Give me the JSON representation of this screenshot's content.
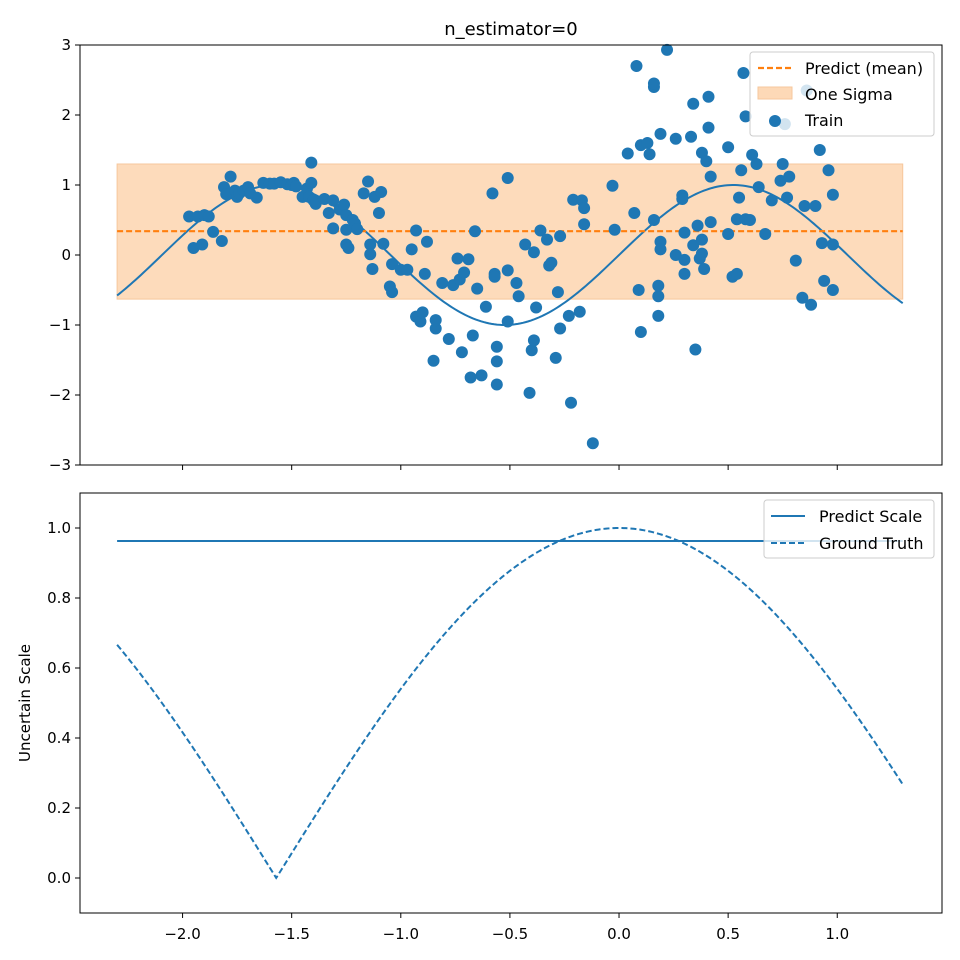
{
  "colors": {
    "blue": "#1f77b4",
    "orange": "#ff7f0e",
    "band_fill": "#fdd9b7"
  },
  "chart_data": [
    {
      "id": "top",
      "type": "scatter",
      "title": "n_estimator=0",
      "xlabel": "",
      "ylabel": "",
      "xlim": [
        -2.47,
        1.48
      ],
      "ylim": [
        -3,
        3
      ],
      "yticks": [
        -3,
        -2,
        -1,
        0,
        1,
        2,
        3
      ],
      "yticklabels": [
        "−3",
        "−2",
        "−1",
        "0",
        "1",
        "2",
        "3"
      ],
      "xticks": [
        -2.0,
        -1.5,
        -1.0,
        -0.5,
        0.0,
        0.5,
        1.0
      ],
      "show_xticklabels": false,
      "legend_placement": "top-right",
      "legend": [
        "Predict (mean)",
        "One Sigma",
        "Train"
      ],
      "predict_mean": {
        "name": "Predict (mean)",
        "x": [
          -2.3,
          1.3
        ],
        "y": 0.34
      },
      "one_sigma": {
        "name": "One Sigma",
        "x": [
          -2.3,
          1.3
        ],
        "lower": -0.63,
        "upper": 1.3
      },
      "true_function": {
        "description": "sin(3x)",
        "x_range": [
          -2.3,
          1.3
        ]
      },
      "train": {
        "name": "Train",
        "points": [
          [
            -1.97,
            0.55
          ],
          [
            -1.95,
            0.1
          ],
          [
            -1.93,
            0.55
          ],
          [
            -1.91,
            0.15
          ],
          [
            -1.9,
            0.57
          ],
          [
            -1.88,
            0.55
          ],
          [
            -1.86,
            0.33
          ],
          [
            -1.82,
            0.2
          ],
          [
            -1.81,
            0.97
          ],
          [
            -1.8,
            0.87
          ],
          [
            -1.78,
            1.12
          ],
          [
            -1.76,
            0.92
          ],
          [
            -1.75,
            0.83
          ],
          [
            -1.74,
            0.88
          ],
          [
            -1.72,
            0.92
          ],
          [
            -1.7,
            0.97
          ],
          [
            -1.69,
            0.88
          ],
          [
            -1.66,
            0.82
          ],
          [
            -1.63,
            1.03
          ],
          [
            -1.6,
            1.02
          ],
          [
            -1.58,
            1.02
          ],
          [
            -1.55,
            1.04
          ],
          [
            -1.52,
            1.01
          ],
          [
            -1.5,
            1.0
          ],
          [
            -1.49,
            1.03
          ],
          [
            -1.48,
            0.98
          ],
          [
            -1.45,
            0.83
          ],
          [
            -1.43,
            0.95
          ],
          [
            -1.42,
            0.83
          ],
          [
            -1.41,
            1.03
          ],
          [
            -1.41,
            1.32
          ],
          [
            -1.4,
            0.78
          ],
          [
            -1.39,
            0.73
          ],
          [
            -1.35,
            0.8
          ],
          [
            -1.33,
            0.6
          ],
          [
            -1.31,
            0.78
          ],
          [
            -1.31,
            0.38
          ],
          [
            -1.28,
            0.65
          ],
          [
            -1.26,
            0.72
          ],
          [
            -1.25,
            0.57
          ],
          [
            -1.25,
            0.36
          ],
          [
            -1.25,
            0.15
          ],
          [
            -1.24,
            0.1
          ],
          [
            -1.22,
            0.5
          ],
          [
            -1.21,
            0.45
          ],
          [
            -1.2,
            0.37
          ],
          [
            -1.17,
            0.88
          ],
          [
            -1.15,
            1.05
          ],
          [
            -1.14,
            0.15
          ],
          [
            -1.14,
            0.01
          ],
          [
            -1.13,
            -0.2
          ],
          [
            -1.12,
            0.83
          ],
          [
            -1.1,
            0.6
          ],
          [
            -1.09,
            0.9
          ],
          [
            -1.08,
            0.16
          ],
          [
            -1.05,
            -0.45
          ],
          [
            -1.04,
            -0.53
          ],
          [
            -1.04,
            -0.13
          ],
          [
            -1.0,
            -0.21
          ],
          [
            -0.97,
            -0.21
          ],
          [
            -0.95,
            0.08
          ],
          [
            -0.93,
            0.35
          ],
          [
            -0.93,
            -0.88
          ],
          [
            -0.91,
            -0.95
          ],
          [
            -0.9,
            -0.82
          ],
          [
            -0.89,
            -0.27
          ],
          [
            -0.88,
            0.19
          ],
          [
            -0.85,
            -1.51
          ],
          [
            -0.84,
            -1.05
          ],
          [
            -0.84,
            -0.93
          ],
          [
            -0.81,
            -0.4
          ],
          [
            -0.78,
            -1.2
          ],
          [
            -0.76,
            -0.43
          ],
          [
            -0.74,
            -0.05
          ],
          [
            -0.73,
            -0.35
          ],
          [
            -0.72,
            -1.39
          ],
          [
            -0.71,
            -0.25
          ],
          [
            -0.69,
            -0.06
          ],
          [
            -0.68,
            -1.75
          ],
          [
            -0.67,
            -1.15
          ],
          [
            -0.66,
            0.34
          ],
          [
            -0.65,
            -0.48
          ],
          [
            -0.63,
            -1.72
          ],
          [
            -0.61,
            -0.74
          ],
          [
            -0.58,
            0.88
          ],
          [
            -0.57,
            -0.27
          ],
          [
            -0.57,
            -0.31
          ],
          [
            -0.56,
            -1.31
          ],
          [
            -0.56,
            -1.52
          ],
          [
            -0.56,
            -1.85
          ],
          [
            -0.51,
            -0.22
          ],
          [
            -0.51,
            -0.95
          ],
          [
            -0.51,
            1.1
          ],
          [
            -0.47,
            -0.4
          ],
          [
            -0.46,
            -0.59
          ],
          [
            -0.43,
            0.15
          ],
          [
            -0.41,
            -1.97
          ],
          [
            -0.4,
            -1.36
          ],
          [
            -0.39,
            -1.22
          ],
          [
            -0.39,
            0.04
          ],
          [
            -0.38,
            -0.75
          ],
          [
            -0.36,
            0.35
          ],
          [
            -0.33,
            0.22
          ],
          [
            -0.32,
            -0.15
          ],
          [
            -0.31,
            -0.11
          ],
          [
            -0.29,
            -1.47
          ],
          [
            -0.28,
            -0.53
          ],
          [
            -0.27,
            0.27
          ],
          [
            -0.27,
            -1.05
          ],
          [
            -0.23,
            -0.87
          ],
          [
            -0.22,
            -2.11
          ],
          [
            -0.21,
            0.79
          ],
          [
            -0.18,
            -0.81
          ],
          [
            -0.17,
            0.78
          ],
          [
            -0.16,
            0.44
          ],
          [
            -0.16,
            0.67
          ],
          [
            -0.12,
            -2.69
          ],
          [
            -0.03,
            0.99
          ],
          [
            -0.02,
            0.36
          ],
          [
            0.04,
            1.45
          ],
          [
            0.07,
            0.6
          ],
          [
            0.08,
            2.7
          ],
          [
            0.09,
            -0.5
          ],
          [
            0.1,
            -1.1
          ],
          [
            0.1,
            1.57
          ],
          [
            0.13,
            1.6
          ],
          [
            0.14,
            1.44
          ],
          [
            0.16,
            2.4
          ],
          [
            0.16,
            2.45
          ],
          [
            0.16,
            0.5
          ],
          [
            0.18,
            -0.59
          ],
          [
            0.18,
            -0.44
          ],
          [
            0.18,
            -0.87
          ],
          [
            0.19,
            0.19
          ],
          [
            0.19,
            0.08
          ],
          [
            0.19,
            1.73
          ],
          [
            0.22,
            2.93
          ],
          [
            0.26,
            0.0
          ],
          [
            0.26,
            1.66
          ],
          [
            0.29,
            0.85
          ],
          [
            0.29,
            0.8
          ],
          [
            0.3,
            0.32
          ],
          [
            0.3,
            -0.27
          ],
          [
            0.3,
            -0.07
          ],
          [
            0.33,
            1.69
          ],
          [
            0.34,
            2.16
          ],
          [
            0.34,
            0.14
          ],
          [
            0.35,
            -1.35
          ],
          [
            0.36,
            0.42
          ],
          [
            0.37,
            -0.05
          ],
          [
            0.38,
            0.02
          ],
          [
            0.38,
            0.22
          ],
          [
            0.38,
            1.46
          ],
          [
            0.39,
            -0.2
          ],
          [
            0.4,
            1.34
          ],
          [
            0.41,
            2.26
          ],
          [
            0.41,
            1.82
          ],
          [
            0.42,
            1.12
          ],
          [
            0.42,
            0.47
          ],
          [
            0.5,
            1.54
          ],
          [
            0.5,
            0.3
          ],
          [
            0.52,
            -0.31
          ],
          [
            0.54,
            -0.27
          ],
          [
            0.54,
            0.51
          ],
          [
            0.55,
            0.82
          ],
          [
            0.56,
            1.21
          ],
          [
            0.57,
            2.6
          ],
          [
            0.58,
            0.51
          ],
          [
            0.58,
            1.98
          ],
          [
            0.6,
            0.5
          ],
          [
            0.61,
            1.43
          ],
          [
            0.63,
            1.3
          ],
          [
            0.64,
            0.97
          ],
          [
            0.67,
            0.3
          ],
          [
            0.7,
            0.78
          ],
          [
            0.74,
            1.06
          ],
          [
            0.75,
            1.3
          ],
          [
            0.76,
            1.87
          ],
          [
            0.77,
            0.82
          ],
          [
            0.78,
            1.12
          ],
          [
            0.81,
            -0.08
          ],
          [
            0.84,
            -0.61
          ],
          [
            0.85,
            0.7
          ],
          [
            0.86,
            2.35
          ],
          [
            0.88,
            -0.71
          ],
          [
            0.9,
            0.7
          ],
          [
            0.92,
            1.5
          ],
          [
            0.93,
            0.17
          ],
          [
            0.94,
            -0.37
          ],
          [
            0.96,
            1.21
          ],
          [
            0.98,
            0.86
          ],
          [
            0.98,
            0.15
          ],
          [
            0.98,
            -0.5
          ]
        ]
      }
    },
    {
      "id": "bottom",
      "type": "line",
      "title": "",
      "xlabel": "",
      "ylabel": "Uncertain Scale",
      "xlim": [
        -2.47,
        1.48
      ],
      "ylim": [
        -0.1,
        1.1
      ],
      "yticks": [
        0.0,
        0.2,
        0.4,
        0.6,
        0.8,
        1.0
      ],
      "yticklabels": [
        "0.0",
        "0.2",
        "0.4",
        "0.6",
        "0.8",
        "1.0"
      ],
      "xticks": [
        -2.0,
        -1.5,
        -1.0,
        -0.5,
        0.0,
        0.5,
        1.0
      ],
      "xticklabels": [
        "−2.0",
        "−1.5",
        "−1.0",
        "−0.5",
        "0.0",
        "0.5",
        "1.0"
      ],
      "legend_placement": "top-right",
      "legend": [
        "Predict Scale",
        "Ground Truth"
      ],
      "series": [
        {
          "name": "Predict Scale",
          "style": "solid",
          "x": [
            -2.3,
            1.3
          ],
          "y": [
            0.963,
            0.963
          ]
        },
        {
          "name": "Ground Truth",
          "style": "dashed",
          "description": "|cos(x)|",
          "x_range": [
            -2.3,
            1.3
          ]
        }
      ]
    }
  ]
}
